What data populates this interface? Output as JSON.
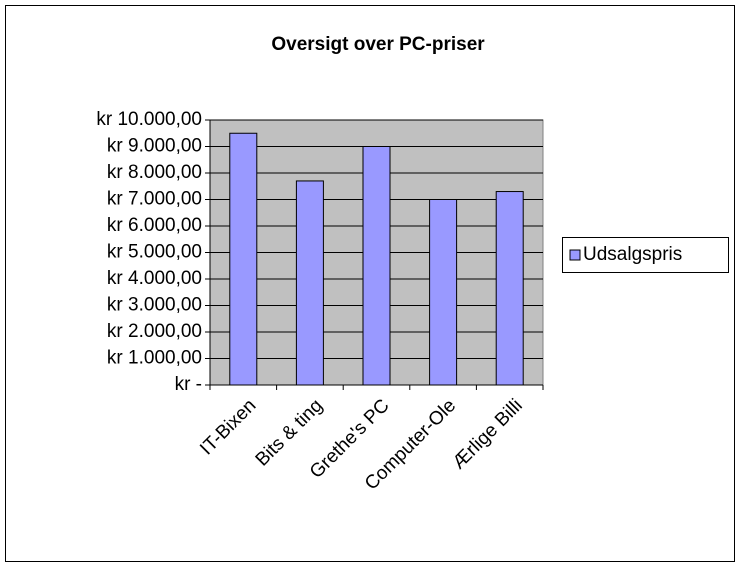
{
  "chart_data": {
    "type": "bar",
    "title": "Oversigt over PC-priser",
    "categories": [
      "IT-Bixen",
      "Bits & ting",
      "Grethe's PC",
      "Computer-Ole",
      "Ærlige Billi"
    ],
    "series": [
      {
        "name": "Udsalgspris",
        "color": "#9999ff",
        "values": [
          9500,
          7700,
          9000,
          7000,
          7300
        ]
      }
    ],
    "ylim": [
      0,
      10000
    ],
    "yticks": [
      {
        "value": 0,
        "label": "kr -"
      },
      {
        "value": 1000,
        "label": "kr 1.000,00"
      },
      {
        "value": 2000,
        "label": "kr 2.000,00"
      },
      {
        "value": 3000,
        "label": "kr 3.000,00"
      },
      {
        "value": 4000,
        "label": "kr 4.000,00"
      },
      {
        "value": 5000,
        "label": "kr 5.000,00"
      },
      {
        "value": 6000,
        "label": "kr 6.000,00"
      },
      {
        "value": 7000,
        "label": "kr 7.000,00"
      },
      {
        "value": 8000,
        "label": "kr 8.000,00"
      },
      {
        "value": 9000,
        "label": "kr 9.000,00"
      },
      {
        "value": 10000,
        "label": "kr 10.000,00"
      }
    ],
    "grid": true,
    "legend": "right"
  }
}
